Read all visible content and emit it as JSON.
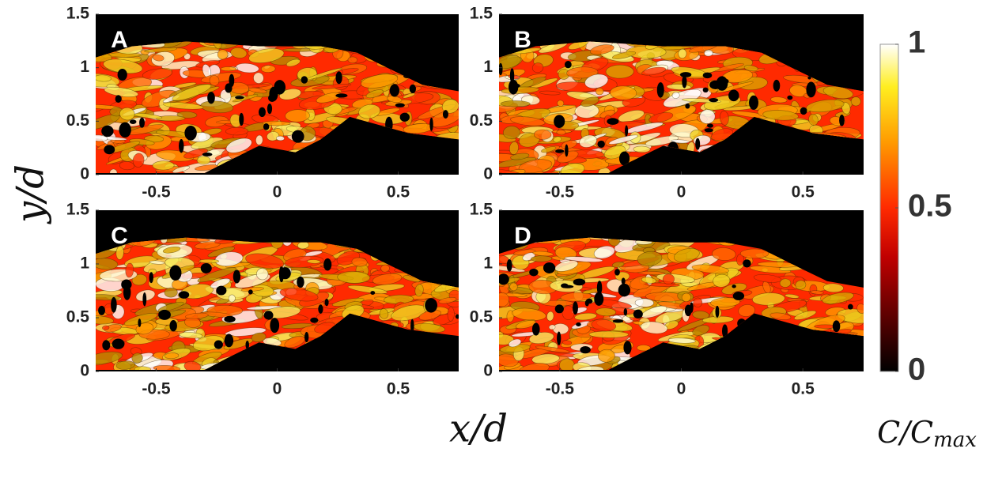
{
  "chart_data": [
    {
      "type": "heatmap",
      "label": "A",
      "xlim": [
        -0.75,
        0.75
      ],
      "ylim": [
        0,
        1.5
      ],
      "xticks": [
        -0.5,
        0,
        0.5
      ],
      "yticks": [
        0,
        0.5,
        1,
        1.5
      ]
    },
    {
      "type": "heatmap",
      "label": "B",
      "xlim": [
        -0.75,
        0.75
      ],
      "ylim": [
        0,
        1.5
      ],
      "xticks": [
        -0.5,
        0,
        0.5
      ],
      "yticks": [
        0,
        0.5,
        1,
        1.5
      ]
    },
    {
      "type": "heatmap",
      "label": "C",
      "xlim": [
        -0.75,
        0.75
      ],
      "ylim": [
        0,
        1.5
      ],
      "xticks": [
        -0.5,
        0,
        0.5
      ],
      "yticks": [
        0,
        0.5,
        1,
        1.5
      ]
    },
    {
      "type": "heatmap",
      "label": "D",
      "xlim": [
        -0.75,
        0.75
      ],
      "ylim": [
        0,
        1.5
      ],
      "xticks": [
        -0.5,
        0,
        0.5
      ],
      "yticks": [
        0,
        0.5,
        1,
        1.5
      ]
    }
  ],
  "xlabel": "x/d",
  "ylabel": "y/d",
  "colorbar": {
    "label": "C/C",
    "label_sub": "max",
    "ylim": [
      0,
      1
    ],
    "yticks": [
      0,
      0.5,
      1
    ]
  }
}
